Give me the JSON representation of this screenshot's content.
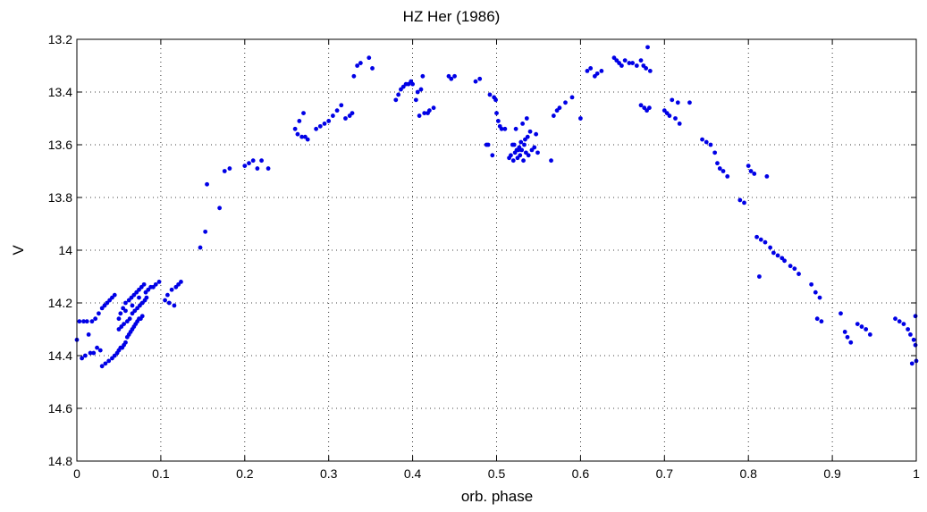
{
  "chart_data": {
    "type": "scatter",
    "title": "HZ Her (1986)",
    "xlabel": "orb. phase",
    "ylabel": "V",
    "xlim": [
      0,
      1
    ],
    "ylim": [
      13.2,
      14.8
    ],
    "y_reversed": true,
    "grid": true,
    "xticks": [
      "0",
      "0.1",
      "0.2",
      "0.3",
      "0.4",
      "0.5",
      "0.6",
      "0.7",
      "0.8",
      "0.9",
      "1"
    ],
    "yticks": [
      "13.2",
      "13.4",
      "13.6",
      "13.8",
      "14",
      "14.2",
      "14.4",
      "14.6",
      "14.8"
    ],
    "marker_color": "#0000e6",
    "points": [
      [
        0.0,
        14.34
      ],
      [
        0.003,
        14.27
      ],
      [
        0.006,
        14.41
      ],
      [
        0.008,
        14.27
      ],
      [
        0.01,
        14.4
      ],
      [
        0.012,
        14.27
      ],
      [
        0.014,
        14.32
      ],
      [
        0.016,
        14.39
      ],
      [
        0.018,
        14.27
      ],
      [
        0.02,
        14.39
      ],
      [
        0.022,
        14.26
      ],
      [
        0.024,
        14.37
      ],
      [
        0.026,
        14.24
      ],
      [
        0.028,
        14.38
      ],
      [
        0.03,
        14.22
      ],
      [
        0.033,
        14.21
      ],
      [
        0.036,
        14.2
      ],
      [
        0.039,
        14.19
      ],
      [
        0.042,
        14.18
      ],
      [
        0.045,
        14.17
      ],
      [
        0.03,
        14.44
      ],
      [
        0.034,
        14.43
      ],
      [
        0.038,
        14.42
      ],
      [
        0.042,
        14.41
      ],
      [
        0.045,
        14.4
      ],
      [
        0.048,
        14.39
      ],
      [
        0.05,
        14.38
      ],
      [
        0.052,
        14.37
      ],
      [
        0.054,
        14.37
      ],
      [
        0.056,
        14.36
      ],
      [
        0.058,
        14.35
      ],
      [
        0.06,
        14.33
      ],
      [
        0.062,
        14.32
      ],
      [
        0.064,
        14.31
      ],
      [
        0.066,
        14.3
      ],
      [
        0.068,
        14.29
      ],
      [
        0.07,
        14.28
      ],
      [
        0.072,
        14.27
      ],
      [
        0.074,
        14.26
      ],
      [
        0.076,
        14.26
      ],
      [
        0.078,
        14.25
      ],
      [
        0.05,
        14.3
      ],
      [
        0.053,
        14.29
      ],
      [
        0.056,
        14.28
      ],
      [
        0.06,
        14.27
      ],
      [
        0.063,
        14.26
      ],
      [
        0.066,
        14.24
      ],
      [
        0.069,
        14.23
      ],
      [
        0.072,
        14.22
      ],
      [
        0.075,
        14.21
      ],
      [
        0.078,
        14.2
      ],
      [
        0.081,
        14.19
      ],
      [
        0.083,
        14.18
      ],
      [
        0.052,
        14.24
      ],
      [
        0.055,
        14.22
      ],
      [
        0.058,
        14.2
      ],
      [
        0.062,
        14.19
      ],
      [
        0.065,
        14.18
      ],
      [
        0.068,
        14.17
      ],
      [
        0.071,
        14.16
      ],
      [
        0.074,
        14.15
      ],
      [
        0.077,
        14.14
      ],
      [
        0.08,
        14.13
      ],
      [
        0.05,
        14.26
      ],
      [
        0.058,
        14.23
      ],
      [
        0.066,
        14.21
      ],
      [
        0.074,
        14.18
      ],
      [
        0.082,
        14.16
      ],
      [
        0.085,
        14.15
      ],
      [
        0.088,
        14.14
      ],
      [
        0.091,
        14.14
      ],
      [
        0.094,
        14.13
      ],
      [
        0.098,
        14.12
      ],
      [
        0.105,
        14.19
      ],
      [
        0.108,
        14.17
      ],
      [
        0.11,
        14.2
      ],
      [
        0.113,
        14.15
      ],
      [
        0.116,
        14.21
      ],
      [
        0.118,
        14.14
      ],
      [
        0.121,
        14.13
      ],
      [
        0.124,
        14.12
      ],
      [
        0.147,
        13.99
      ],
      [
        0.153,
        13.93
      ],
      [
        0.155,
        13.75
      ],
      [
        0.17,
        13.84
      ],
      [
        0.176,
        13.7
      ],
      [
        0.182,
        13.69
      ],
      [
        0.2,
        13.68
      ],
      [
        0.205,
        13.67
      ],
      [
        0.21,
        13.66
      ],
      [
        0.215,
        13.69
      ],
      [
        0.22,
        13.66
      ],
      [
        0.228,
        13.69
      ],
      [
        0.26,
        13.54
      ],
      [
        0.263,
        13.56
      ],
      [
        0.265,
        13.51
      ],
      [
        0.268,
        13.57
      ],
      [
        0.27,
        13.48
      ],
      [
        0.272,
        13.57
      ],
      [
        0.275,
        13.58
      ],
      [
        0.285,
        13.54
      ],
      [
        0.29,
        13.53
      ],
      [
        0.295,
        13.52
      ],
      [
        0.3,
        13.51
      ],
      [
        0.305,
        13.49
      ],
      [
        0.31,
        13.47
      ],
      [
        0.315,
        13.45
      ],
      [
        0.32,
        13.5
      ],
      [
        0.325,
        13.49
      ],
      [
        0.328,
        13.48
      ],
      [
        0.33,
        13.34
      ],
      [
        0.334,
        13.3
      ],
      [
        0.338,
        13.29
      ],
      [
        0.348,
        13.27
      ],
      [
        0.352,
        13.31
      ],
      [
        0.38,
        13.43
      ],
      [
        0.383,
        13.41
      ],
      [
        0.386,
        13.39
      ],
      [
        0.389,
        13.38
      ],
      [
        0.392,
        13.37
      ],
      [
        0.395,
        13.37
      ],
      [
        0.398,
        13.36
      ],
      [
        0.4,
        13.37
      ],
      [
        0.404,
        13.43
      ],
      [
        0.406,
        13.4
      ],
      [
        0.408,
        13.49
      ],
      [
        0.41,
        13.39
      ],
      [
        0.412,
        13.34
      ],
      [
        0.414,
        13.48
      ],
      [
        0.418,
        13.48
      ],
      [
        0.42,
        13.47
      ],
      [
        0.425,
        13.46
      ],
      [
        0.443,
        13.34
      ],
      [
        0.446,
        13.35
      ],
      [
        0.45,
        13.34
      ],
      [
        0.475,
        13.36
      ],
      [
        0.48,
        13.35
      ],
      [
        0.488,
        13.6
      ],
      [
        0.49,
        13.6
      ],
      [
        0.492,
        13.41
      ],
      [
        0.495,
        13.64
      ],
      [
        0.497,
        13.42
      ],
      [
        0.499,
        13.43
      ],
      [
        0.5,
        13.48
      ],
      [
        0.502,
        13.51
      ],
      [
        0.504,
        13.53
      ],
      [
        0.506,
        13.54
      ],
      [
        0.51,
        13.54
      ],
      [
        0.515,
        13.65
      ],
      [
        0.517,
        13.64
      ],
      [
        0.519,
        13.6
      ],
      [
        0.52,
        13.66
      ],
      [
        0.521,
        13.6
      ],
      [
        0.522,
        13.63
      ],
      [
        0.523,
        13.54
      ],
      [
        0.524,
        13.62
      ],
      [
        0.525,
        13.65
      ],
      [
        0.526,
        13.62
      ],
      [
        0.527,
        13.61
      ],
      [
        0.528,
        13.64
      ],
      [
        0.529,
        13.59
      ],
      [
        0.53,
        13.62
      ],
      [
        0.531,
        13.52
      ],
      [
        0.532,
        13.66
      ],
      [
        0.533,
        13.6
      ],
      [
        0.534,
        13.58
      ],
      [
        0.535,
        13.63
      ],
      [
        0.536,
        13.5
      ],
      [
        0.537,
        13.57
      ],
      [
        0.538,
        13.64
      ],
      [
        0.54,
        13.55
      ],
      [
        0.542,
        13.62
      ],
      [
        0.545,
        13.61
      ],
      [
        0.547,
        13.56
      ],
      [
        0.549,
        13.63
      ],
      [
        0.565,
        13.66
      ],
      [
        0.568,
        13.49
      ],
      [
        0.572,
        13.47
      ],
      [
        0.575,
        13.46
      ],
      [
        0.582,
        13.44
      ],
      [
        0.59,
        13.42
      ],
      [
        0.6,
        13.5
      ],
      [
        0.608,
        13.32
      ],
      [
        0.612,
        13.31
      ],
      [
        0.617,
        13.34
      ],
      [
        0.62,
        13.33
      ],
      [
        0.625,
        13.32
      ],
      [
        0.64,
        13.27
      ],
      [
        0.643,
        13.28
      ],
      [
        0.646,
        13.29
      ],
      [
        0.649,
        13.3
      ],
      [
        0.653,
        13.28
      ],
      [
        0.658,
        13.29
      ],
      [
        0.662,
        13.29
      ],
      [
        0.667,
        13.3
      ],
      [
        0.672,
        13.28
      ],
      [
        0.675,
        13.3
      ],
      [
        0.678,
        13.31
      ],
      [
        0.68,
        13.23
      ],
      [
        0.683,
        13.32
      ],
      [
        0.672,
        13.45
      ],
      [
        0.676,
        13.46
      ],
      [
        0.679,
        13.47
      ],
      [
        0.682,
        13.46
      ],
      [
        0.7,
        13.47
      ],
      [
        0.703,
        13.48
      ],
      [
        0.706,
        13.49
      ],
      [
        0.709,
        13.43
      ],
      [
        0.713,
        13.5
      ],
      [
        0.716,
        13.44
      ],
      [
        0.718,
        13.52
      ],
      [
        0.73,
        13.44
      ],
      [
        0.745,
        13.58
      ],
      [
        0.75,
        13.59
      ],
      [
        0.755,
        13.6
      ],
      [
        0.76,
        13.63
      ],
      [
        0.763,
        13.67
      ],
      [
        0.766,
        13.69
      ],
      [
        0.77,
        13.7
      ],
      [
        0.775,
        13.72
      ],
      [
        0.79,
        13.81
      ],
      [
        0.795,
        13.82
      ],
      [
        0.8,
        13.68
      ],
      [
        0.803,
        13.7
      ],
      [
        0.807,
        13.71
      ],
      [
        0.81,
        13.95
      ],
      [
        0.813,
        14.1
      ],
      [
        0.815,
        13.96
      ],
      [
        0.82,
        13.97
      ],
      [
        0.822,
        13.72
      ],
      [
        0.826,
        13.99
      ],
      [
        0.83,
        14.01
      ],
      [
        0.835,
        14.02
      ],
      [
        0.84,
        14.03
      ],
      [
        0.843,
        14.04
      ],
      [
        0.85,
        14.06
      ],
      [
        0.855,
        14.07
      ],
      [
        0.86,
        14.09
      ],
      [
        0.875,
        14.13
      ],
      [
        0.88,
        14.16
      ],
      [
        0.882,
        14.26
      ],
      [
        0.885,
        14.18
      ],
      [
        0.887,
        14.27
      ],
      [
        0.91,
        14.24
      ],
      [
        0.915,
        14.31
      ],
      [
        0.918,
        14.33
      ],
      [
        0.922,
        14.35
      ],
      [
        0.93,
        14.28
      ],
      [
        0.935,
        14.29
      ],
      [
        0.94,
        14.3
      ],
      [
        0.945,
        14.32
      ],
      [
        0.975,
        14.26
      ],
      [
        0.98,
        14.27
      ],
      [
        0.985,
        14.28
      ],
      [
        0.99,
        14.3
      ],
      [
        0.993,
        14.32
      ],
      [
        0.995,
        14.43
      ],
      [
        0.997,
        14.34
      ],
      [
        1.0,
        14.42
      ],
      [
        0.999,
        14.36
      ],
      [
        0.999,
        14.25
      ]
    ]
  }
}
